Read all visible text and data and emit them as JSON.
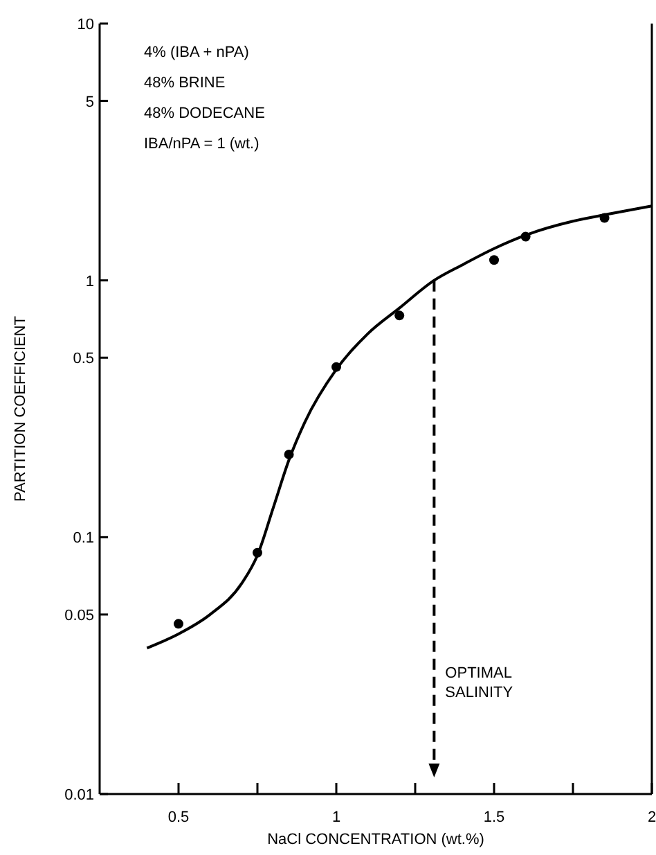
{
  "chart_data": {
    "type": "scatter",
    "xlabel": "NaCl CONCENTRATION (wt.%)",
    "ylabel": "PARTITION COEFFICIENT",
    "xlim": [
      0.25,
      2
    ],
    "xticks": [
      0.5,
      {
        "value": 0.75,
        "label": null
      },
      1,
      {
        "value": 1.25,
        "label": null
      },
      1.5,
      {
        "value": 1.75,
        "label": null
      },
      2
    ],
    "ylim": [
      0.01,
      10
    ],
    "yticks": [
      {
        "value": 0.01,
        "label": "0.01"
      },
      {
        "value": 0.05,
        "label": "0.05"
      },
      0.1,
      0.5,
      1,
      5,
      10
    ],
    "log": "y",
    "grid": false,
    "ref_lines": [
      {
        "axis": "x",
        "value": 1.31,
        "label": "OPTIMAL SALINITY",
        "line_style": "dashed",
        "color": "#000000"
      }
    ],
    "series": [
      {
        "color": "#000000",
        "marker": "circle",
        "x": [
          0.5,
          0.75,
          0.85,
          1.0,
          1.2,
          1.5,
          1.6,
          1.85
        ],
        "values": [
          0.046,
          0.087,
          0.21,
          0.46,
          0.73,
          1.2,
          1.48,
          1.75
        ]
      },
      {
        "type": "line",
        "color": "#000000",
        "marker": "none",
        "line_style": "solid",
        "x": [
          0.4,
          0.5,
          0.6,
          0.7,
          0.75,
          0.8,
          0.85,
          0.9,
          1.0,
          1.1,
          1.2,
          1.31,
          1.4,
          1.5,
          1.6,
          1.75,
          1.85,
          2.0
        ],
        "values": [
          0.037,
          0.042,
          0.05,
          0.066,
          0.085,
          0.13,
          0.2,
          0.28,
          0.45,
          0.62,
          0.78,
          1.0,
          1.15,
          1.33,
          1.5,
          1.7,
          1.8,
          1.95
        ]
      }
    ],
    "annotations": [
      "4% (IBA + nPA)",
      "48% BRINE",
      "48% DODECANE",
      "IBA/nPA = 1 (wt.)"
    ]
  }
}
